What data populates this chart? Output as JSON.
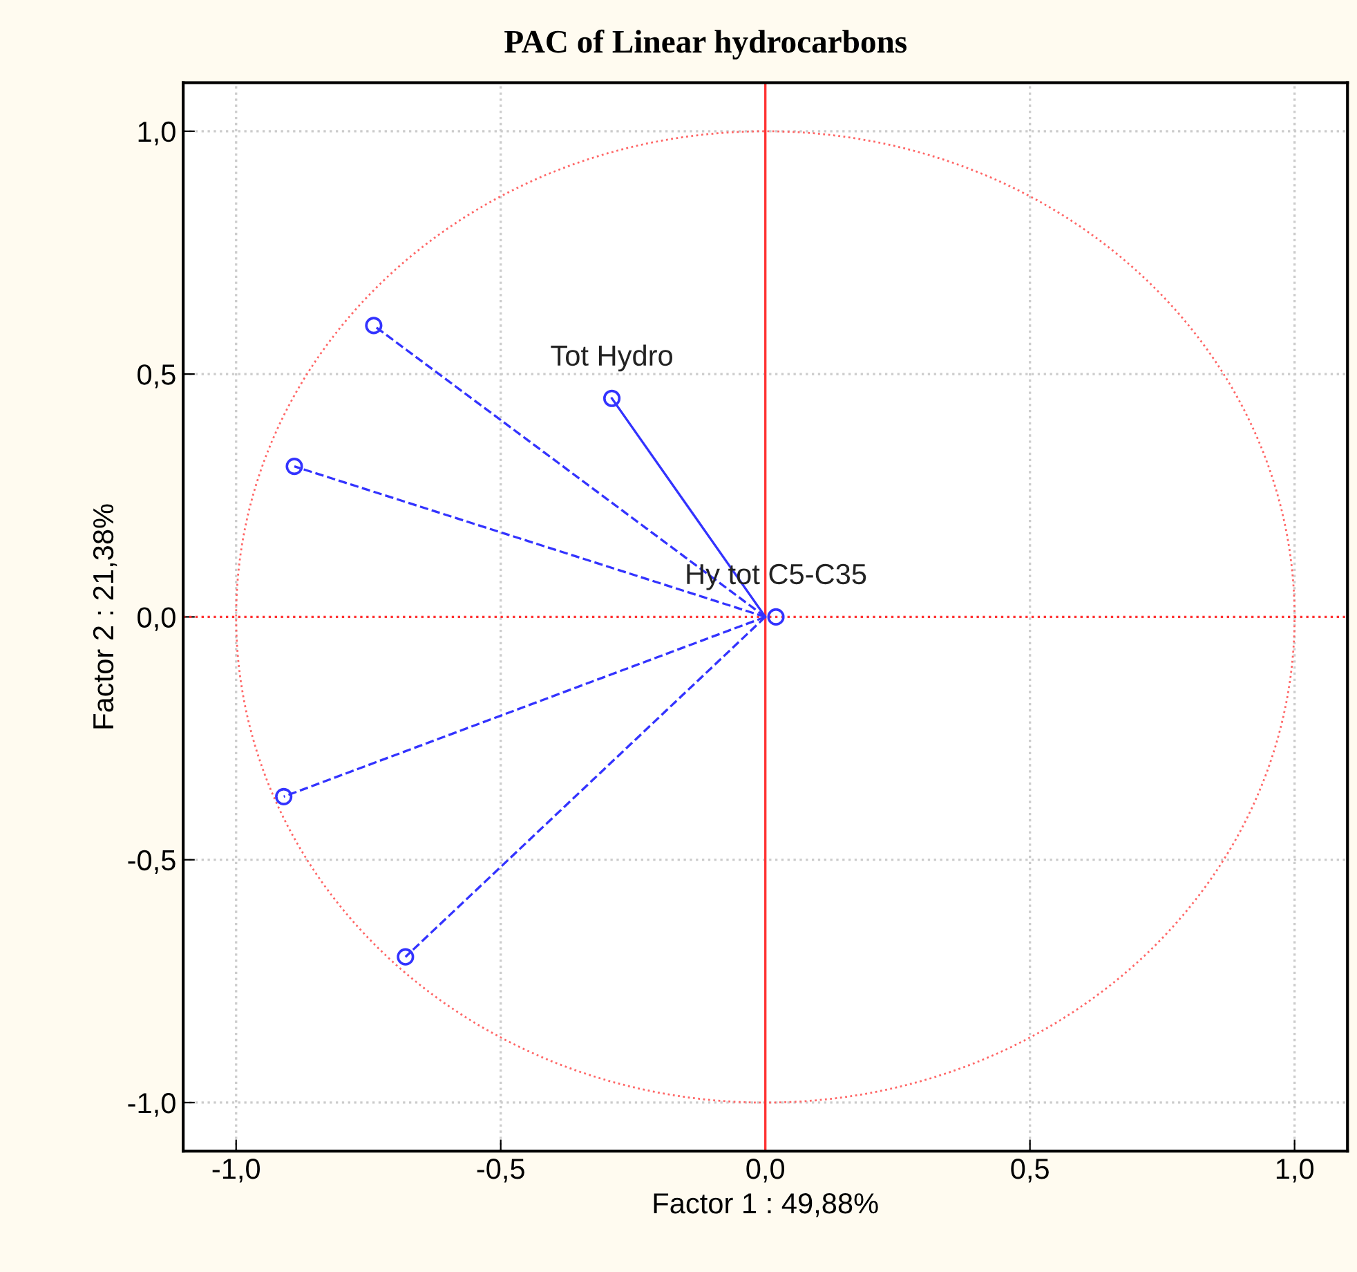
{
  "chart_data": {
    "type": "scatter",
    "title": "PAC of Linear hydrocarbons",
    "xlabel": "Factor 1 : 49,88%",
    "ylabel": "Factor 2 : 21,38%",
    "xlim": [
      -1.1,
      1.1
    ],
    "ylim": [
      -1.1,
      1.1
    ],
    "xticks": [
      {
        "value": -1.0,
        "label": "-1,0"
      },
      {
        "value": -0.5,
        "label": "-0,5"
      },
      {
        "value": 0.0,
        "label": "0,0"
      },
      {
        "value": 0.5,
        "label": "0,5"
      },
      {
        "value": 1.0,
        "label": "1,0"
      }
    ],
    "yticks": [
      {
        "value": -1.0,
        "label": "-1,0"
      },
      {
        "value": -0.5,
        "label": "-0,5"
      },
      {
        "value": 0.0,
        "label": "0,0"
      },
      {
        "value": 0.5,
        "label": "0,5"
      },
      {
        "value": 1.0,
        "label": "1,0"
      }
    ],
    "grid": true,
    "marker": "circle",
    "series": [
      {
        "type": "line",
        "color": "#3333ff",
        "line_style": "dashed",
        "marker": "none",
        "x": [
          0,
          -0.74
        ],
        "values": [
          0,
          0.6
        ]
      },
      {
        "type": "line",
        "color": "#3333ff",
        "line_style": "dashed",
        "marker": "none",
        "x": [
          0,
          -0.89
        ],
        "values": [
          0,
          0.31
        ]
      },
      {
        "type": "line",
        "color": "#3333ff",
        "line_style": "solid",
        "marker": "none",
        "x": [
          0,
          -0.29
        ],
        "values": [
          0,
          0.45
        ]
      },
      {
        "type": "line",
        "color": "#3333ff",
        "line_style": "dashed",
        "marker": "none",
        "x": [
          0,
          -0.91
        ],
        "values": [
          0,
          -0.37
        ]
      },
      {
        "type": "line",
        "color": "#3333ff",
        "line_style": "dashed",
        "marker": "none",
        "x": [
          0,
          -0.68
        ],
        "values": [
          0,
          -0.7
        ]
      },
      {
        "color": "#3333ff",
        "x": [
          -0.74,
          -0.89,
          -0.29,
          -0.91,
          -0.68,
          0.02
        ],
        "values": [
          0.6,
          0.31,
          0.45,
          -0.37,
          -0.7,
          0.0
        ]
      }
    ],
    "ref_lines": [
      {
        "axis": "x",
        "value": 0,
        "color": "#ff3333",
        "line_style": "solid"
      },
      {
        "axis": "y",
        "value": 0,
        "color": "#ff3333",
        "line_style": "dotted"
      }
    ],
    "annotations": [
      {
        "text": "Tot Hydro",
        "x": -0.29,
        "y": 0.45
      },
      {
        "text": "Hy tot C5-C35",
        "x": 0.02,
        "y": 0.0
      }
    ]
  }
}
